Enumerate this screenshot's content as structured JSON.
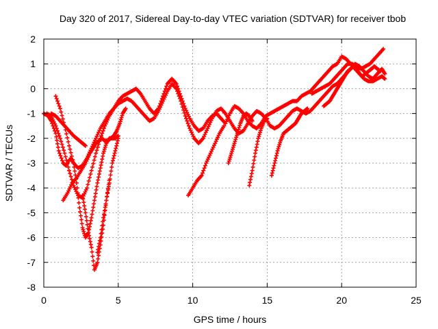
{
  "chart_data": {
    "type": "scatter",
    "title": "Day 320 of 2017, Sidereal Day-to-day VTEC variation (SDTVAR) for receiver tbob",
    "xlabel": "GPS time / hours",
    "ylabel": "SDTVAR / TECUs",
    "xlim": [
      0,
      25
    ],
    "ylim": [
      -8,
      2
    ],
    "xticks": [
      "0",
      "5",
      "10",
      "15",
      "20",
      "25"
    ],
    "yticks": [
      "-8",
      "-7",
      "-6",
      "-5",
      "-4",
      "-3",
      "-2",
      "-1",
      "0",
      "1",
      "2"
    ],
    "grid": true,
    "marker": "plus",
    "color": "#ff0000",
    "series": [
      {
        "x": [
          0.0,
          0.3,
          0.5,
          0.8,
          1.0,
          1.3,
          1.5,
          1.8,
          2.0,
          2.3,
          2.6,
          2.9,
          3.2,
          3.5,
          3.8,
          4.1,
          4.4,
          4.7,
          5.0,
          5.3,
          5.6,
          5.9,
          6.2,
          6.5,
          6.8,
          7.1,
          7.4,
          7.7,
          8.0,
          8.3,
          8.6,
          8.9,
          9.2,
          9.5,
          9.8,
          10.1,
          10.4,
          10.7,
          11.0,
          11.3,
          11.6,
          11.9,
          12.2,
          12.5,
          12.8,
          13.1,
          13.4,
          13.7,
          14.0,
          14.3,
          14.6,
          14.9,
          15.2,
          15.5,
          15.8,
          16.1,
          16.4,
          16.7,
          17.0,
          17.3,
          17.6,
          17.9,
          18.2,
          18.5,
          18.8,
          19.1,
          19.4,
          19.7,
          20.0,
          20.3,
          20.6,
          20.9,
          21.2,
          21.5,
          21.8,
          22.1,
          22.4,
          22.7,
          22.9
        ],
        "y": [
          -1.0,
          -1.1,
          -1.3,
          -1.8,
          -2.5,
          -3.0,
          -3.1,
          -2.8,
          -3.0,
          -3.2,
          -3.1,
          -2.8,
          -2.4,
          -2.0,
          -1.6,
          -1.3,
          -1.0,
          -0.8,
          -0.5,
          -0.3,
          -0.2,
          -0.1,
          0.0,
          -0.2,
          -0.5,
          -0.8,
          -1.0,
          -0.8,
          -0.3,
          0.2,
          0.4,
          0.2,
          -0.3,
          -0.8,
          -1.2,
          -1.5,
          -1.7,
          -1.6,
          -1.3,
          -1.1,
          -1.0,
          -1.2,
          -1.4,
          -1.0,
          -0.7,
          -0.8,
          -1.0,
          -1.3,
          -1.5,
          -1.6,
          -1.4,
          -1.1,
          -1.0,
          -0.9,
          -0.8,
          -0.7,
          -0.6,
          -0.5,
          -0.5,
          -0.3,
          -0.2,
          -0.1,
          0.1,
          0.3,
          0.5,
          0.7,
          0.9,
          1.0,
          1.3,
          1.2,
          1.0,
          0.8,
          0.6,
          0.4,
          0.3,
          0.3,
          0.4,
          0.5,
          0.4
        ]
      },
      {
        "x": [
          0.2,
          0.5,
          0.8,
          1.1,
          1.4,
          1.7,
          2.0,
          2.3,
          2.6,
          2.9,
          3.2,
          3.5,
          3.8,
          4.1,
          4.4,
          4.7,
          5.0,
          5.3,
          5.6,
          5.9,
          6.2,
          6.5,
          6.8,
          7.1,
          7.4,
          7.7,
          8.0,
          8.3,
          8.6,
          8.9,
          9.2,
          9.5,
          9.8,
          10.1,
          10.4,
          10.7,
          11.0,
          11.3,
          11.6,
          11.9,
          12.2,
          12.5,
          12.8,
          13.1,
          13.4,
          13.7,
          14.0,
          14.3,
          14.6,
          14.9,
          15.2,
          15.5,
          15.8,
          16.1,
          16.4,
          16.7,
          17.0,
          17.3,
          17.6,
          17.9,
          18.2,
          18.5,
          18.8,
          19.1,
          19.4,
          19.7,
          20.0,
          20.3,
          20.6,
          20.9,
          21.2,
          21.5,
          21.8,
          22.1,
          22.4,
          22.7,
          22.9
        ],
        "y": [
          -1.0,
          -1.1,
          -1.5,
          -2.0,
          -2.6,
          -3.3,
          -3.9,
          -4.3,
          -4.4,
          -4.0,
          -3.3,
          -2.6,
          -2.0,
          -1.5,
          -1.1,
          -0.8,
          -0.6,
          -0.5,
          -0.4,
          -0.5,
          -0.7,
          -0.9,
          -1.1,
          -1.3,
          -1.2,
          -0.9,
          -0.5,
          -0.1,
          0.2,
          0.0,
          -0.5,
          -1.1,
          -1.6,
          -2.0,
          -2.2,
          -2.0,
          -1.6,
          -1.2,
          -0.9,
          -0.8,
          -1.0,
          -1.3,
          -1.6,
          -1.8,
          -1.7,
          -1.4,
          -1.1,
          -0.9,
          -1.0,
          -1.2,
          -1.5,
          -1.6,
          -1.5,
          -1.3,
          -1.1,
          -0.9,
          -0.8,
          -0.9,
          -1.0,
          -0.9,
          -0.7,
          -0.5,
          -0.3,
          -0.1,
          0.1,
          0.2,
          0.4,
          0.6,
          0.8,
          1.0,
          0.9,
          0.7,
          0.5,
          0.4,
          0.6,
          0.8,
          0.6
        ]
      },
      {
        "x": [
          0.5,
          0.8,
          1.1,
          1.4,
          1.7,
          2.0,
          2.2,
          2.4,
          2.6,
          2.8
        ],
        "y": [
          -1.0,
          -1.1,
          -1.3,
          -1.5,
          -1.7,
          -1.9,
          -2.0,
          -2.1,
          -2.2,
          -2.3
        ]
      },
      {
        "x": [
          0.8,
          1.1,
          1.4,
          1.7,
          2.0,
          2.2,
          2.4,
          2.6,
          2.8,
          3.0,
          3.2,
          3.4,
          3.6,
          3.8,
          4.0,
          4.2,
          4.4,
          4.6,
          4.8,
          5.0
        ],
        "y": [
          -0.3,
          -0.8,
          -1.5,
          -2.3,
          -3.0,
          -3.8,
          -4.8,
          -5.6,
          -6.0,
          -5.8,
          -5.2,
          -4.5,
          -3.8,
          -3.2,
          -2.6,
          -2.2,
          -2.0,
          -2.0,
          -2.0,
          -1.9
        ]
      },
      {
        "x": [
          1.3,
          1.6,
          1.9,
          2.2,
          2.5,
          2.8,
          3.1,
          3.3,
          3.5,
          3.7,
          3.9,
          4.1,
          4.3,
          4.5,
          4.7,
          4.9,
          5.1,
          5.3,
          5.5
        ],
        "y": [
          -4.5,
          -4.2,
          -3.8,
          -3.6,
          -3.3,
          -3.0,
          -2.6,
          -2.4,
          -2.2,
          -2.1,
          -2.0,
          -2.1,
          -2.1,
          -2.0,
          -1.9,
          -1.7,
          -1.4,
          -1.0,
          -0.8
        ]
      },
      {
        "x": [
          2.6,
          2.8,
          3.0,
          3.2,
          3.4,
          3.6,
          3.8,
          4.0,
          4.2,
          4.4
        ],
        "y": [
          -4.3,
          -5.0,
          -5.8,
          -6.4,
          -7.3,
          -7.0,
          -6.3,
          -5.5,
          -4.5,
          -3.7
        ]
      },
      {
        "x": [
          3.6,
          3.8,
          4.0,
          4.2,
          4.4,
          4.6,
          4.8,
          5.0
        ],
        "y": [
          -6.6,
          -6.0,
          -5.2,
          -4.5,
          -3.8,
          -3.0,
          -2.5,
          -2.0
        ]
      },
      {
        "x": [
          9.7,
          10.0,
          10.3,
          10.6,
          10.9,
          11.2,
          11.5,
          11.8,
          12.1
        ],
        "y": [
          -4.3,
          -4.0,
          -3.7,
          -3.5,
          -3.0,
          -2.6,
          -2.2,
          -1.8,
          -1.5
        ]
      },
      {
        "x": [
          12.4,
          12.6,
          12.8,
          13.0,
          13.2,
          13.4,
          13.6,
          13.8,
          14.0
        ],
        "y": [
          -3.0,
          -2.6,
          -2.2,
          -1.8,
          -1.4,
          -1.1,
          -1.0,
          -1.1,
          -1.3
        ]
      },
      {
        "x": [
          13.8,
          14.0,
          14.2,
          14.4,
          14.6,
          14.8,
          15.0
        ],
        "y": [
          -3.9,
          -3.3,
          -2.6,
          -2.0,
          -1.6,
          -1.3,
          -1.2
        ]
      },
      {
        "x": [
          15.3,
          15.5,
          15.7,
          15.9,
          16.1,
          16.3,
          16.5,
          16.7,
          16.9,
          17.1,
          17.3,
          17.5,
          17.7
        ],
        "y": [
          -3.5,
          -3.0,
          -2.5,
          -2.1,
          -1.8,
          -1.7,
          -1.6,
          -1.5,
          -1.4,
          -1.2,
          -1.0,
          -0.9,
          -0.8
        ]
      },
      {
        "x": [
          18.0,
          18.3,
          18.6,
          18.9,
          19.2,
          19.5,
          19.8,
          20.1,
          20.4,
          20.7,
          21.0,
          21.3,
          21.6,
          21.9,
          22.2,
          22.5,
          22.8
        ],
        "y": [
          -0.2,
          -0.1,
          0.0,
          0.1,
          0.2,
          0.4,
          0.6,
          0.8,
          1.0,
          1.0,
          0.9,
          0.8,
          0.9,
          1.0,
          1.2,
          1.4,
          1.6
        ]
      },
      {
        "x": [
          18.8,
          19.0,
          19.2,
          19.4,
          19.6,
          19.8,
          20.0,
          20.2,
          20.4,
          20.6,
          20.8,
          21.0,
          21.2,
          21.4,
          21.6,
          21.8,
          22.0,
          22.2,
          22.4,
          22.6
        ],
        "y": [
          -0.7,
          -0.6,
          -0.5,
          -0.3,
          -0.1,
          0.1,
          0.3,
          0.5,
          0.7,
          0.8,
          0.9,
          0.8,
          0.6,
          0.5,
          0.6,
          0.7,
          0.8,
          0.9,
          0.8,
          0.7
        ]
      }
    ]
  }
}
